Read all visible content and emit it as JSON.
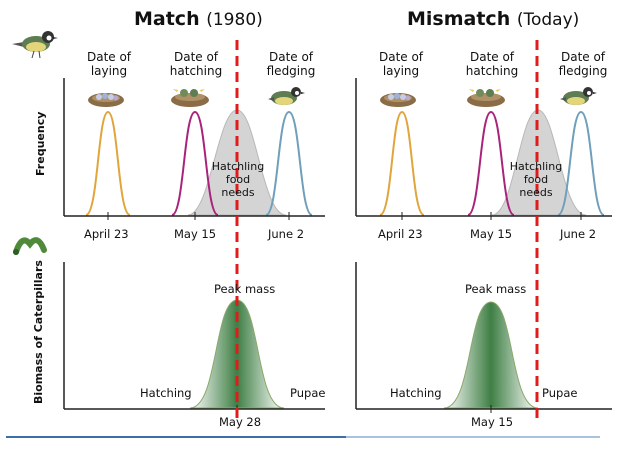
{
  "panels": {
    "match": {
      "title": "Match",
      "year": "(1980)",
      "stages": [
        "Date of laying",
        "Date of hatching",
        "Date of fledging"
      ],
      "dates": [
        "April 23",
        "May 15",
        "June 2"
      ],
      "food_needs": [
        "Hatchling",
        "food",
        "needs"
      ],
      "peak_label": "Peak mass",
      "hatching_label": "Hatching",
      "pupae_label": "Pupae",
      "caterpillar_date": "May 28"
    },
    "mismatch": {
      "title": "Mismatch",
      "year": "(Today)",
      "stages": [
        "Date of laying",
        "Date of hatching",
        "Date of fledging"
      ],
      "dates": [
        "April 23",
        "May 15",
        "June 2"
      ],
      "food_needs": [
        "Hatchling",
        "food",
        "needs"
      ],
      "peak_label": "Peak mass",
      "hatching_label": "Hatching",
      "pupae_label": "Pupae",
      "caterpillar_date": "May 15"
    }
  },
  "axes": {
    "frequency": "Frequency",
    "biomass": "Biomass of Caterpillars"
  },
  "colors": {
    "laying": "#e0a53c",
    "hatching": "#a8237a",
    "fledging": "#6f9fba",
    "food_fill": "#d4d4d4",
    "caterpillar": "#3f7f45",
    "dashed": "#e01b1b",
    "axis": "#222222",
    "baseline": "#3d6ea8"
  },
  "icons": [
    "bird-icon",
    "nest-icon",
    "caterpillar-icon"
  ]
}
